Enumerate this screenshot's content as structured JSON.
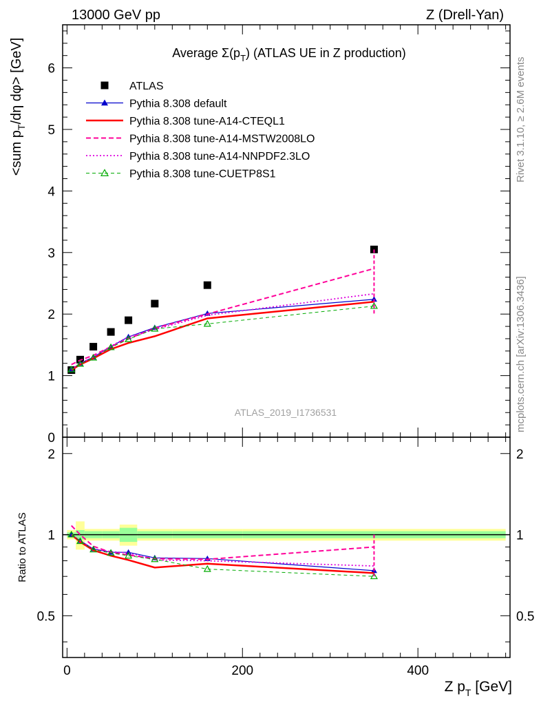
{
  "header": {
    "left": "13000 GeV pp",
    "right": "Z (Drell-Yan)"
  },
  "side_labels": {
    "rivet": "Rivet 3.1.10, ≥ 2.6M events",
    "mcplots": "mcplots.cern.ch [arXiv:1306.3436]"
  },
  "watermark": "ATLAS_2019_I1736531",
  "chart_data": {
    "type": "line",
    "title": "Average Σ(p_T) (ATLAS UE in Z production)",
    "title_main": "Average ",
    "title_sigma": "Σ(p",
    "title_sub": "T",
    "title_rest": ") (ATLAS UE in Z production)",
    "xlabel": "Z p_T [GeV]",
    "xlabel_main": "Z p",
    "xlabel_sub": "T",
    "xlabel_unit": " [GeV]",
    "ylabel": "<sum p_T/dη dφ> [GeV]",
    "ylabel_pre": "<sum p",
    "ylabel_sub": "T",
    "ylabel_post": "/dη dφ> [GeV]",
    "ratio_ylabel": "Ratio to ATLAS",
    "xlim": [
      -5,
      505
    ],
    "ylim": [
      0,
      6.7
    ],
    "ratio_ylim": [
      0.35,
      2.3
    ],
    "x_ticks": [
      0,
      200,
      400
    ],
    "x_tick_labels": [
      "0",
      "200",
      "400"
    ],
    "y_ticks": [
      0,
      1,
      2,
      3,
      4,
      5,
      6
    ],
    "y_tick_labels": [
      "0",
      "1",
      "2",
      "3",
      "4",
      "5",
      "6"
    ],
    "ratio_ticks": [
      0.5,
      1,
      2
    ],
    "ratio_tick_labels": [
      "0.5",
      "1",
      "2"
    ],
    "legend_position": "top-left",
    "x": [
      5,
      15,
      30,
      50,
      70,
      100,
      160,
      350
    ],
    "data_bands": {
      "edges": [
        0,
        10,
        20,
        40,
        60,
        80,
        120,
        200,
        500
      ],
      "inner": [
        0.02,
        0.04,
        0.03,
        0.03,
        0.06,
        0.03,
        0.03,
        0.03
      ],
      "outer": [
        0.04,
        0.12,
        0.05,
        0.05,
        0.09,
        0.05,
        0.05,
        0.05
      ]
    },
    "series": [
      {
        "name": "ATLAS",
        "color": "#000000",
        "style": "marker",
        "marker": "square",
        "values": [
          1.09,
          1.26,
          1.47,
          1.71,
          1.9,
          2.17,
          2.47,
          3.05
        ]
      },
      {
        "name": "Pythia 8.308 default",
        "color": "#0000cc",
        "style": "solid",
        "width": 1.2,
        "marker": "triangle",
        "values": [
          1.1,
          1.2,
          1.3,
          1.47,
          1.63,
          1.78,
          2.01,
          2.24
        ],
        "ratio": [
          1.0,
          0.95,
          0.885,
          0.86,
          0.86,
          0.82,
          0.815,
          0.735
        ]
      },
      {
        "name": "Pythia 8.308 tune-A14-CTEQL1",
        "color": "#ff0000",
        "style": "solid",
        "width": 2.5,
        "marker": "none",
        "values": [
          1.09,
          1.18,
          1.28,
          1.43,
          1.53,
          1.64,
          1.93,
          2.2
        ],
        "ratio": [
          1.0,
          0.94,
          0.875,
          0.835,
          0.805,
          0.755,
          0.78,
          0.72
        ]
      },
      {
        "name": "Pythia 8.308 tune-A14-MSTW2008LO",
        "color": "#ff0099",
        "style": "dashed",
        "width": 2.0,
        "marker": "none",
        "values": [
          1.18,
          1.25,
          1.33,
          1.47,
          1.6,
          1.77,
          2.0,
          2.74
        ],
        "ratio": [
          1.08,
          1.0,
          0.905,
          0.86,
          0.84,
          0.815,
          0.81,
          0.9
        ]
      },
      {
        "name": "Pythia 8.308 tune-A14-NNPDF2.3LO",
        "color": "#dd00dd",
        "style": "dotted",
        "width": 1.8,
        "marker": "none",
        "values": [
          1.1,
          1.2,
          1.3,
          1.48,
          1.63,
          1.75,
          1.98,
          2.33
        ],
        "ratio": [
          1.0,
          0.95,
          0.885,
          0.865,
          0.855,
          0.805,
          0.8,
          0.765
        ]
      },
      {
        "name": "Pythia 8.308 tune-CUETP8S1",
        "color": "#00aa00",
        "style": "dashed-thin",
        "width": 1.0,
        "marker": "open-triangle",
        "values": [
          1.1,
          1.19,
          1.29,
          1.46,
          1.59,
          1.76,
          1.84,
          2.13
        ],
        "ratio": [
          1.0,
          0.945,
          0.88,
          0.855,
          0.835,
          0.81,
          0.745,
          0.7
        ]
      }
    ]
  }
}
